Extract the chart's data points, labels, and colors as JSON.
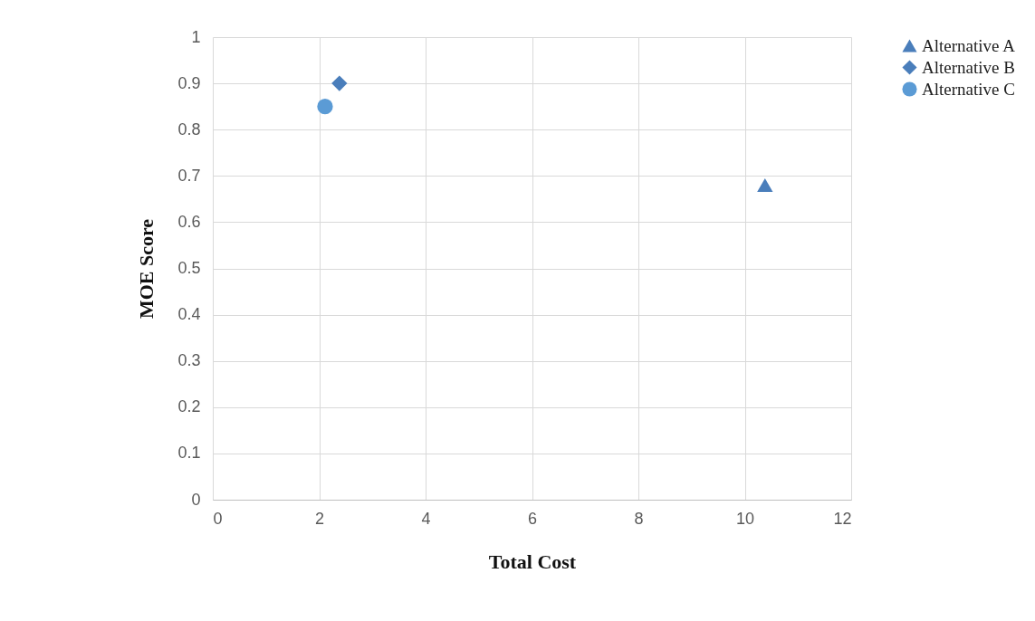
{
  "chart_data": {
    "type": "scatter",
    "xlabel": "Total Cost",
    "ylabel": "MOE Score",
    "xlim": [
      0,
      12
    ],
    "xticks": [
      0,
      2,
      4,
      6,
      8,
      10,
      12
    ],
    "ylim": [
      0,
      1
    ],
    "yticks": [
      0,
      0.1,
      0.2,
      0.3,
      0.4,
      0.5,
      0.6,
      0.7,
      0.8,
      0.9,
      1
    ],
    "grid": true,
    "legend": "right",
    "series": [
      {
        "name": "Alternative A",
        "color": "#4a7ebb",
        "marker": "triangle",
        "x": [
          10.38
        ],
        "values": [
          0.68
        ]
      },
      {
        "name": "Alternative B",
        "color": "#4a7ebb",
        "marker": "diamond",
        "x": [
          2.38
        ],
        "values": [
          0.9
        ]
      },
      {
        "name": "Alternative C",
        "color": "#5b9bd5",
        "marker": "circle",
        "x": [
          2.11
        ],
        "values": [
          0.85
        ]
      }
    ]
  }
}
